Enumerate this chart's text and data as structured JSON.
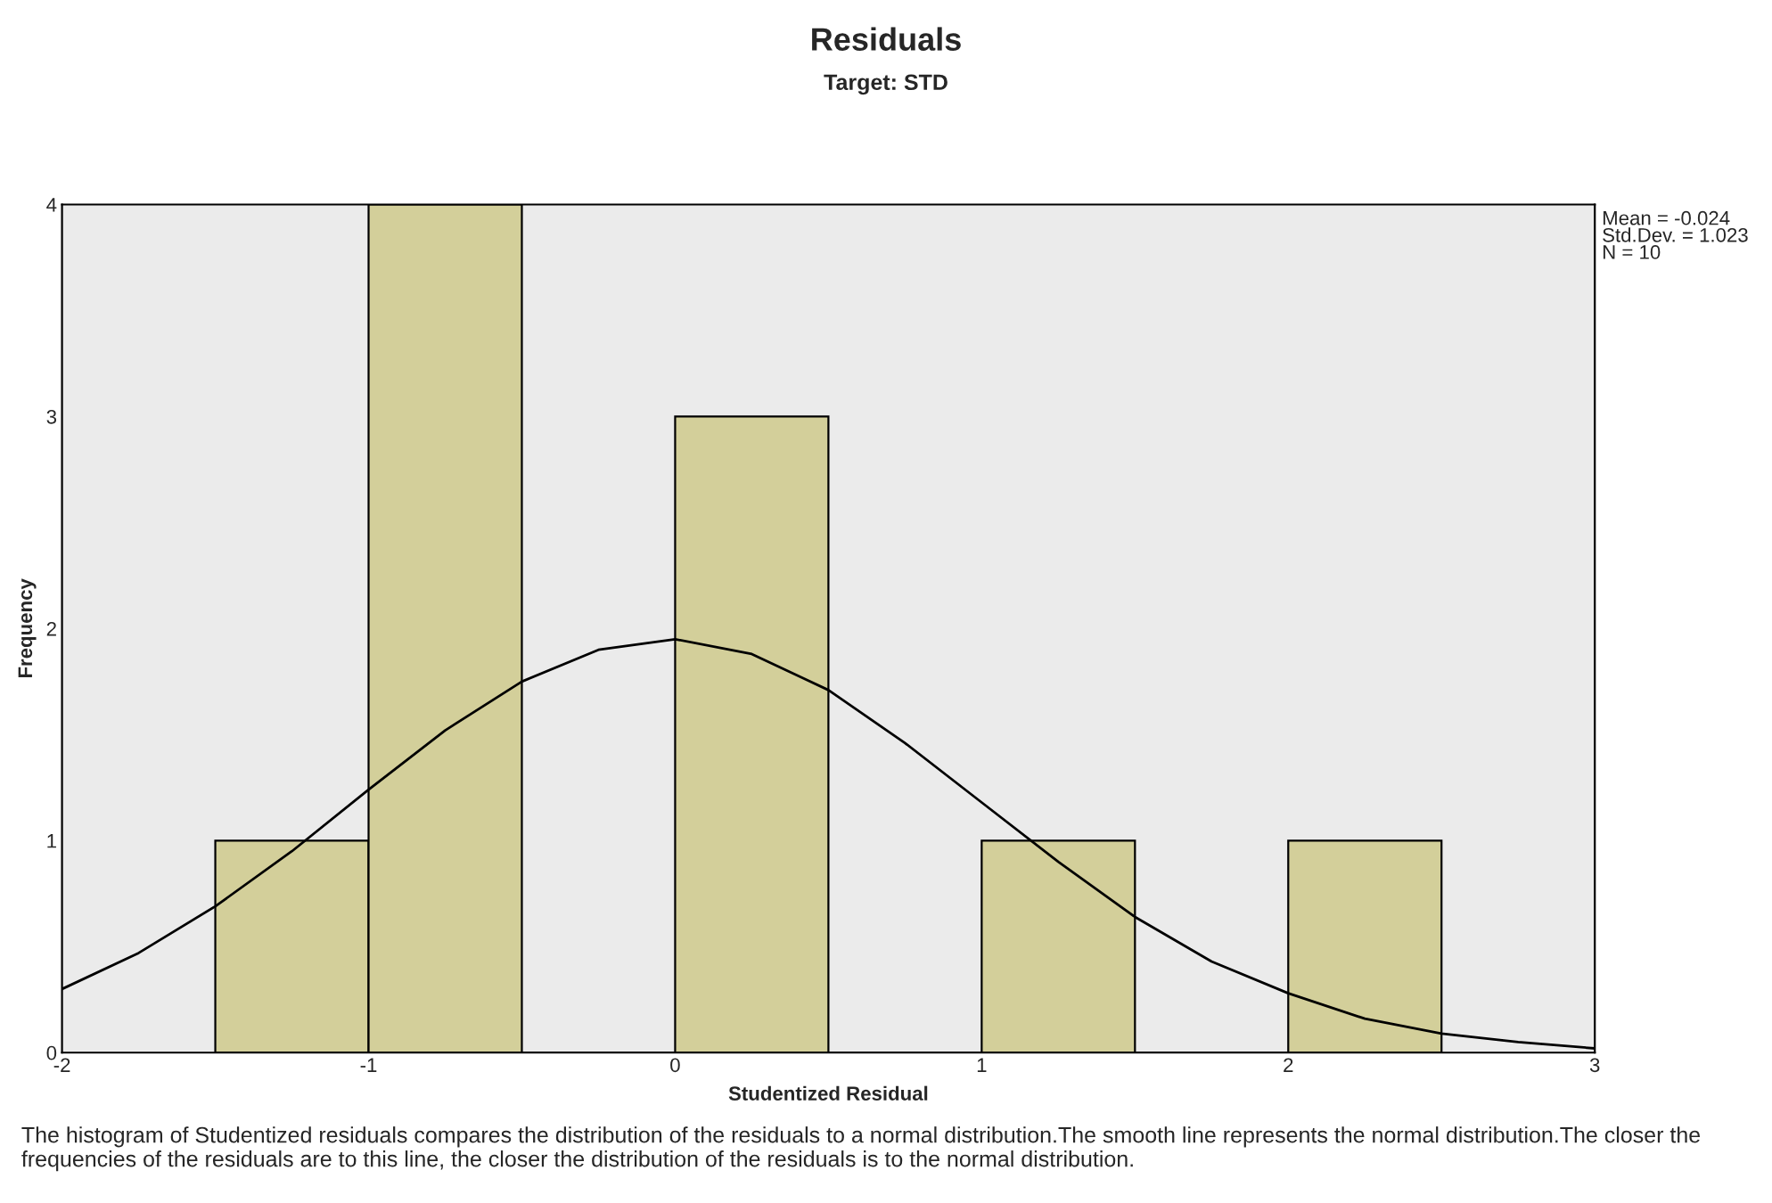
{
  "chart_data": {
    "type": "histogram",
    "title": "Residuals",
    "subtitle": "Target: STD",
    "xlabel": "Studentized Residual",
    "ylabel": "Frequency",
    "bins": [
      -1.5,
      -1,
      -0.5,
      0,
      0.5,
      1,
      1.5,
      2,
      2.5
    ],
    "values": [
      1,
      4,
      0,
      3,
      0,
      1,
      0,
      1
    ],
    "color": "#d3cf9a",
    "series": [
      {
        "type": "line",
        "color": "#000000",
        "x": [
          -2,
          -1.75,
          -1.5,
          -1.25,
          -1,
          -0.75,
          -0.5,
          -0.25,
          0,
          0.25,
          0.5,
          0.75,
          1,
          1.25,
          1.5,
          1.75,
          2,
          2.25,
          2.5,
          2.75,
          3
        ],
        "values": [
          0.3,
          0.47,
          0.69,
          0.95,
          1.24,
          1.52,
          1.75,
          1.9,
          1.95,
          1.88,
          1.71,
          1.46,
          1.18,
          0.9,
          0.64,
          0.43,
          0.28,
          0.16,
          0.09,
          0.05,
          0.02
        ]
      }
    ],
    "xlim": [
      -2,
      3
    ],
    "xticks": [
      -2,
      -1,
      0,
      1,
      2,
      3
    ],
    "ylim": [
      0,
      4
    ],
    "yticks": [
      0,
      1,
      2,
      3,
      4
    ],
    "grid": false,
    "annotations": [
      "Mean = -0.024\nStd.Dev. = 1.023\nN = 10",
      "The histogram of Studentized residuals compares the distribution of the residuals to a normal distribution.The smooth line represents the normal distribution.The closer the frequencies of the residuals are to this line, the closer the distribution of the residuals is to the normal distribution."
    ]
  }
}
